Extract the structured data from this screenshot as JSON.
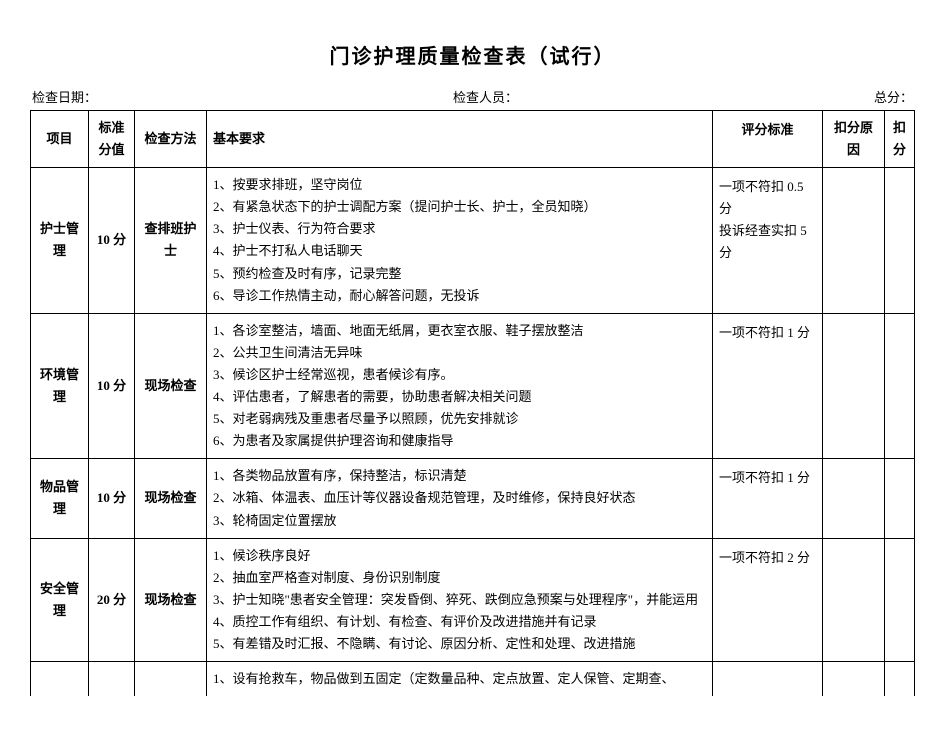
{
  "title": "门诊护理质量检查表（试行）",
  "header": {
    "date_label": "检查日期：",
    "staff_label": "检查人员：",
    "total_label": "总分："
  },
  "columns": {
    "project": "项目",
    "score": "标准分值",
    "method": "检查方法",
    "requirements": "基本要求",
    "standard": "评分标准",
    "reason": "扣分原因",
    "deduct": "扣分"
  },
  "rows": [
    {
      "project": "护士管理",
      "score": "10 分",
      "method": "查排班护士",
      "reqs": [
        "1、按要求排班，坚守岗位",
        "2、有紧急状态下的护士调配方案（提问护士长、护士，全员知晓）",
        "3、护士仪表、行为符合要求",
        "4、护士不打私人电话聊天",
        "5、预约检查及时有序，记录完整",
        "6、导诊工作热情主动，耐心解答问题，无投诉"
      ],
      "standard": "一项不符扣 0.5 分\n投诉经查实扣 5 分"
    },
    {
      "project": "环境管理",
      "score": "10 分",
      "method": "现场检查",
      "reqs": [
        "1、各诊室整洁，墙面、地面无纸屑，更衣室衣服、鞋子摆放整洁",
        "2、公共卫生间清洁无异味",
        "3、候诊区护士经常巡视，患者候诊有序。",
        "4、评估患者，了解患者的需要，协助患者解决相关问题",
        "5、对老弱病残及重患者尽量予以照顾，优先安排就诊",
        "6、为患者及家属提供护理咨询和健康指导"
      ],
      "standard": "一项不符扣 1 分"
    },
    {
      "project": "物品管理",
      "score": "10 分",
      "method": "现场检查",
      "reqs": [
        "1、各类物品放置有序，保持整洁，标识清楚",
        "2、冰箱、体温表、血压计等仪器设备规范管理，及时维修，保持良好状态",
        "3、轮椅固定位置摆放"
      ],
      "standard": "一项不符扣 1 分"
    },
    {
      "project": "安全管理",
      "score": "20 分",
      "method": "现场检查",
      "reqs": [
        "1、候诊秩序良好",
        "2、抽血室严格查对制度、身份识别制度",
        "3、护士知晓\"患者安全管理：突发昏倒、猝死、跌倒应急预案与处理程序\"，并能运用",
        "4、质控工作有组织、有计划、有检查、有评价及改进措施并有记录",
        "5、有差错及时汇报、不隐瞒、有讨论、原因分析、定性和处理、改进措施"
      ],
      "standard": "一项不符扣 2 分"
    }
  ],
  "partial_row": {
    "req": "1、设有抢救车，物品做到五固定（定数量品种、定点放置、定人保管、定期查、"
  },
  "colors": {
    "text": "#000000",
    "border": "#000000",
    "background": "#ffffff"
  }
}
